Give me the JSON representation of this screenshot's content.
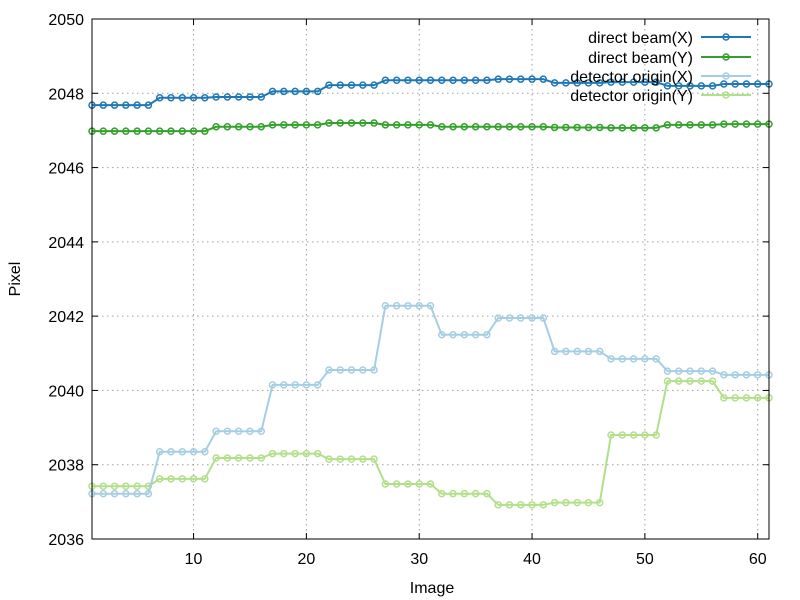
{
  "chart_data": {
    "type": "line",
    "xlabel": "Image",
    "ylabel": "Pixel",
    "xlim": [
      1,
      61
    ],
    "ylim": [
      2036,
      2050
    ],
    "xticks": [
      10,
      20,
      30,
      40,
      50,
      60
    ],
    "yticks": [
      2036,
      2038,
      2040,
      2042,
      2044,
      2046,
      2048,
      2050
    ],
    "grid": true,
    "legend_position": "top-right",
    "x": [
      1,
      2,
      3,
      4,
      5,
      6,
      7,
      8,
      9,
      10,
      11,
      12,
      13,
      14,
      15,
      16,
      17,
      18,
      19,
      20,
      21,
      22,
      23,
      24,
      25,
      26,
      27,
      28,
      29,
      30,
      31,
      32,
      33,
      34,
      35,
      36,
      37,
      38,
      39,
      40,
      41,
      42,
      43,
      44,
      45,
      46,
      47,
      48,
      49,
      50,
      51,
      52,
      53,
      54,
      55,
      56,
      57,
      58,
      59,
      60,
      61
    ],
    "series": [
      {
        "name": "direct beam(X)",
        "color": "#1f78b4",
        "values": [
          2047.68,
          2047.68,
          2047.68,
          2047.68,
          2047.68,
          2047.68,
          2047.88,
          2047.88,
          2047.88,
          2047.88,
          2047.88,
          2047.9,
          2047.9,
          2047.9,
          2047.9,
          2047.9,
          2048.05,
          2048.05,
          2048.05,
          2048.05,
          2048.05,
          2048.22,
          2048.22,
          2048.22,
          2048.22,
          2048.22,
          2048.35,
          2048.35,
          2048.35,
          2048.35,
          2048.35,
          2048.35,
          2048.35,
          2048.35,
          2048.35,
          2048.35,
          2048.38,
          2048.38,
          2048.38,
          2048.38,
          2048.38,
          2048.28,
          2048.28,
          2048.28,
          2048.28,
          2048.28,
          2048.3,
          2048.3,
          2048.3,
          2048.3,
          2048.3,
          2048.2,
          2048.2,
          2048.2,
          2048.2,
          2048.2,
          2048.25,
          2048.25,
          2048.25,
          2048.25,
          2048.25
        ]
      },
      {
        "name": "direct beam(Y)",
        "color": "#33a02c",
        "values": [
          2046.98,
          2046.98,
          2046.98,
          2046.98,
          2046.98,
          2046.98,
          2046.98,
          2046.98,
          2046.98,
          2046.98,
          2046.98,
          2047.1,
          2047.1,
          2047.1,
          2047.1,
          2047.1,
          2047.15,
          2047.15,
          2047.15,
          2047.15,
          2047.15,
          2047.2,
          2047.2,
          2047.2,
          2047.2,
          2047.2,
          2047.15,
          2047.15,
          2047.15,
          2047.15,
          2047.15,
          2047.1,
          2047.1,
          2047.1,
          2047.1,
          2047.1,
          2047.1,
          2047.1,
          2047.1,
          2047.1,
          2047.1,
          2047.08,
          2047.08,
          2047.08,
          2047.08,
          2047.08,
          2047.07,
          2047.07,
          2047.07,
          2047.07,
          2047.07,
          2047.15,
          2047.15,
          2047.15,
          2047.15,
          2047.15,
          2047.17,
          2047.17,
          2047.17,
          2047.17,
          2047.17
        ]
      },
      {
        "name": "detector origin(X)",
        "color": "#a6cee3",
        "values": [
          2037.22,
          2037.22,
          2037.22,
          2037.22,
          2037.22,
          2037.22,
          2038.35,
          2038.35,
          2038.35,
          2038.35,
          2038.35,
          2038.9,
          2038.9,
          2038.9,
          2038.9,
          2038.9,
          2040.15,
          2040.15,
          2040.15,
          2040.15,
          2040.15,
          2040.55,
          2040.55,
          2040.55,
          2040.55,
          2040.55,
          2042.28,
          2042.28,
          2042.28,
          2042.28,
          2042.28,
          2041.5,
          2041.5,
          2041.5,
          2041.5,
          2041.5,
          2041.95,
          2041.95,
          2041.95,
          2041.95,
          2041.95,
          2041.05,
          2041.05,
          2041.05,
          2041.05,
          2041.05,
          2040.85,
          2040.85,
          2040.85,
          2040.85,
          2040.85,
          2040.52,
          2040.52,
          2040.52,
          2040.52,
          2040.52,
          2040.42,
          2040.42,
          2040.42,
          2040.42,
          2040.42
        ]
      },
      {
        "name": "detector origin(Y)",
        "color": "#b2df8a",
        "values": [
          2037.42,
          2037.42,
          2037.42,
          2037.42,
          2037.42,
          2037.42,
          2037.62,
          2037.62,
          2037.62,
          2037.62,
          2037.62,
          2038.18,
          2038.18,
          2038.18,
          2038.18,
          2038.18,
          2038.3,
          2038.3,
          2038.3,
          2038.3,
          2038.3,
          2038.15,
          2038.15,
          2038.15,
          2038.15,
          2038.15,
          2037.48,
          2037.48,
          2037.48,
          2037.48,
          2037.48,
          2037.22,
          2037.22,
          2037.22,
          2037.22,
          2037.22,
          2036.92,
          2036.92,
          2036.92,
          2036.92,
          2036.92,
          2036.98,
          2036.98,
          2036.98,
          2036.98,
          2036.98,
          2038.8,
          2038.8,
          2038.8,
          2038.8,
          2038.8,
          2040.25,
          2040.25,
          2040.25,
          2040.25,
          2040.25,
          2039.8,
          2039.8,
          2039.8,
          2039.8,
          2039.8
        ]
      }
    ]
  }
}
